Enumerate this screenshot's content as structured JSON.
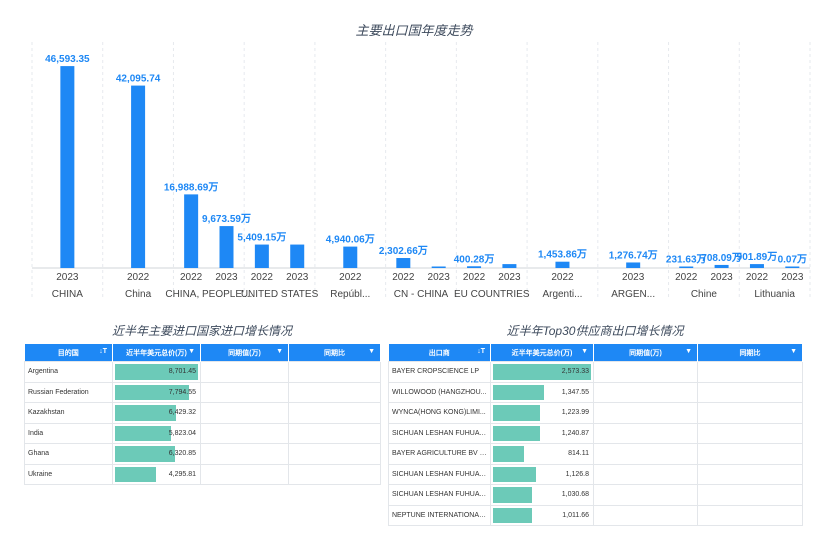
{
  "chart_data": {
    "type": "bar",
    "title": "主要出口国年度走势",
    "groups": [
      "CHINA",
      "China",
      "CHINA, PEOPLE'...",
      "UNITED STATES",
      "Repúbl...",
      "CN - CHINA",
      "EU COUNTRIES",
      "Argenti...",
      "ARGEN...",
      "Chine",
      "Lithuania"
    ],
    "bars": [
      {
        "group": "CHINA",
        "year": "2023",
        "value": 46593.35,
        "label": "46,593.35"
      },
      {
        "group": "China",
        "year": "2022",
        "value": 42095.74,
        "label": "42,095.74"
      },
      {
        "group": "CHINA, PEOPLE'...",
        "year": "2022",
        "value": 16988.69,
        "label": "16,988.69万"
      },
      {
        "group": "CHINA, PEOPLE'...",
        "year": "2023",
        "value": 9673.59,
        "label": "9,673.59万"
      },
      {
        "group": "UNITED STATES",
        "year": "2022",
        "value": 5409.15,
        "label": "5,409.15万"
      },
      {
        "group": "UNITED STATES",
        "year": "2023",
        "value": 5409.15,
        "label": ""
      },
      {
        "group": "Repúbl...",
        "year": "2022",
        "value": 4940.06,
        "label": "4,940.06万"
      },
      {
        "group": "CN - CHINA",
        "year": "2022",
        "value": 2302.66,
        "label": "2,302.66万"
      },
      {
        "group": "CN - CHINA",
        "year": "2023",
        "value": 150,
        "label": ""
      },
      {
        "group": "EU COUNTRIES",
        "year": "2022",
        "value": 400.28,
        "label": "400.28万"
      },
      {
        "group": "EU COUNTRIES",
        "year": "2023",
        "value": 900,
        "label": ""
      },
      {
        "group": "Argenti...",
        "year": "2022",
        "value": 1453.86,
        "label": "1,453.86万"
      },
      {
        "group": "ARGEN...",
        "year": "2023",
        "value": 1276.74,
        "label": "1,276.74万"
      },
      {
        "group": "Chine",
        "year": "2022",
        "value": 231.63,
        "label": "231.63万"
      },
      {
        "group": "Chine",
        "year": "2023",
        "value": 708.09,
        "label": "708.09万"
      },
      {
        "group": "Lithuania",
        "year": "2022",
        "value": 901.89,
        "label": "901.89万"
      },
      {
        "group": "Lithuania",
        "year": "2023",
        "value": 0.07,
        "label": "0.07万"
      }
    ],
    "ylim": [
      0,
      48000
    ],
    "bar_color": "#1e88f5",
    "label_color": "#1e88f5"
  },
  "import_panel": {
    "title": "近半年主要进口国家进口增长情况",
    "columns": [
      "目的国",
      "近半年美元总价(万)",
      "同期值(万)",
      "同期比"
    ],
    "rows": [
      {
        "name": "Argentina",
        "value": 8701.45,
        "label": "8,701.45"
      },
      {
        "name": "Russian Federation",
        "value": 7794.55,
        "label": "7,794.55"
      },
      {
        "name": "Kazakhstan",
        "value": 6429.32,
        "label": "6,429.32"
      },
      {
        "name": "India",
        "value": 5823.04,
        "label": "5,823.04"
      },
      {
        "name": "Ghana",
        "value": 6320.85,
        "label": "6,320.85"
      },
      {
        "name": "Ukraine",
        "value": 4295.81,
        "label": "4,295.81"
      }
    ],
    "max": 8701.45
  },
  "supplier_panel": {
    "title": "近半年Top30供应商出口增长情况",
    "columns": [
      "出口商",
      "近半年美元总价(万)",
      "同期值(万)",
      "同期比"
    ],
    "rows": [
      {
        "name": "BAYER CROPSCIENCE LP",
        "value": 2573.33,
        "label": "2,573.33"
      },
      {
        "name": "WILLOWOOD (HANGZHOU...",
        "value": 1347.55,
        "label": "1,347.55"
      },
      {
        "name": "WYNCA(HONG KONG)LIMI...",
        "value": 1223.99,
        "label": "1,223.99"
      },
      {
        "name": "SICHUAN LESHAN FUHUA T...",
        "value": 1240.87,
        "label": "1,240.87"
      },
      {
        "name": "BAYER AGRICULTURE BV HA...",
        "value": 814.11,
        "label": "814.11"
      },
      {
        "name": "SICHUAN LESHAN FUHUA T...",
        "value": 1126.8,
        "label": "1,126.8"
      },
      {
        "name": "SICHUAN LESHAN FUHUA T...",
        "value": 1030.68,
        "label": "1,030.68"
      },
      {
        "name": "NEPTUNE INTERNATIONAL ...",
        "value": 1011.66,
        "label": "1,011.66"
      }
    ],
    "max": 2573.33
  },
  "colors": {
    "header": "#1e88f5",
    "bar": "#6ccab8",
    "chart_bar": "#1e88f5"
  },
  "icons": {
    "sort": "sort-icon",
    "dropdown": "caret-down-icon"
  }
}
